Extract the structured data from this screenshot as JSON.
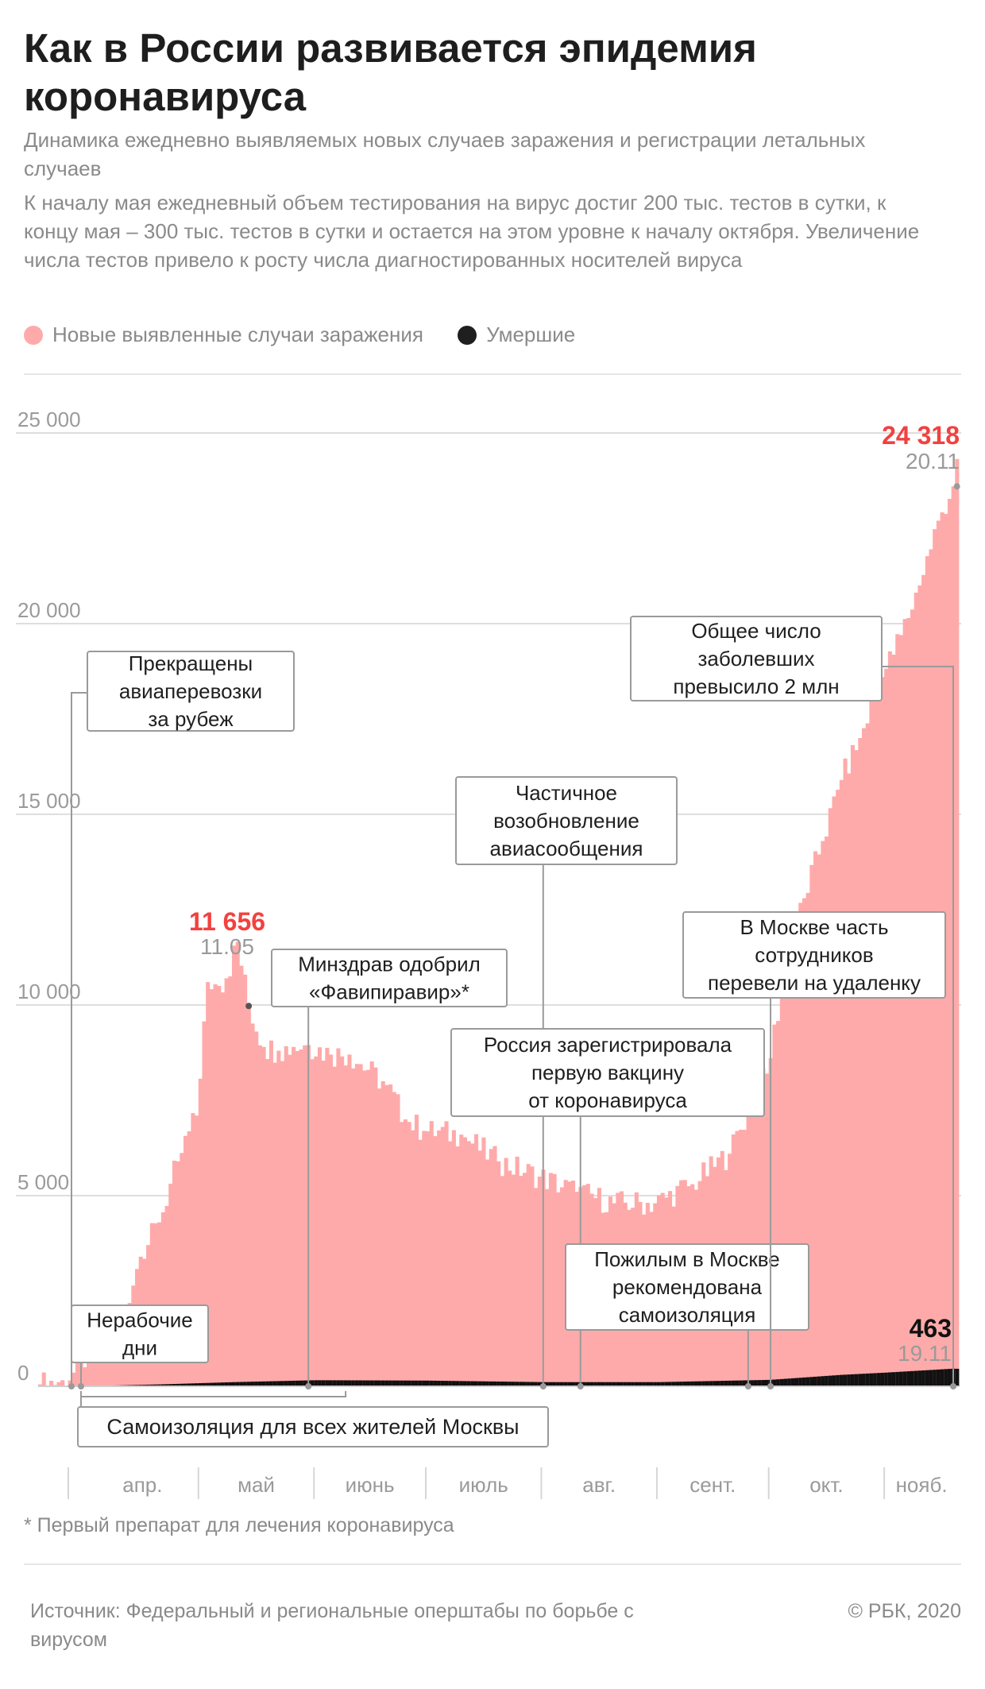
{
  "header": {
    "title": "Как в России развивается эпидемия коронавируса",
    "subtitle": "Динамика ежедневно выявляемых новых случаев заражения и регистрации летальных случаев",
    "description": "К началу мая ежедневный объем тестирования на вирус достиг 200 тыс. тестов в сутки, к концу мая – 300 тыс. тестов в сутки и остается на этом уровне к началу октября. Увеличение числа тестов привело к росту числа диагностированных носителей вируса"
  },
  "legend": {
    "cases_label": "Новые выявленные случаи заражения",
    "deaths_label": "Умершие"
  },
  "colors": {
    "cases": "#ffaaaa",
    "deaths": "#111111",
    "highlight": "#f2413f",
    "muted": "#9a9a9a"
  },
  "chart_data": {
    "type": "bar",
    "start_date": "2020-03-19",
    "end_date": "2020-11-20",
    "ylim": [
      0,
      25000
    ],
    "yticks": [
      "0",
      "5 000",
      "10 000",
      "15 000",
      "20 000",
      "25 000"
    ],
    "ytick_values": [
      0,
      5000,
      10000,
      15000,
      20000,
      25000
    ],
    "months": [
      "апр.",
      "май",
      "июнь",
      "июль",
      "авг.",
      "сент.",
      "окт.",
      "нояб."
    ],
    "series": [
      {
        "name": "Новые выявленные случаи заражения",
        "keyframes": [
          [
            "2020-03-19",
            50
          ],
          [
            "2020-03-25",
            160
          ],
          [
            "2020-03-31",
            500
          ],
          [
            "2020-04-05",
            950
          ],
          [
            "2020-04-10",
            1800
          ],
          [
            "2020-04-15",
            3400
          ],
          [
            "2020-04-20",
            4300
          ],
          [
            "2020-04-25",
            5900
          ],
          [
            "2020-04-30",
            7100
          ],
          [
            "2020-05-03",
            10600
          ],
          [
            "2020-05-06",
            10500
          ],
          [
            "2020-05-08",
            10700
          ],
          [
            "2020-05-11",
            11656
          ],
          [
            "2020-05-14",
            9974
          ],
          [
            "2020-05-18",
            8900
          ],
          [
            "2020-05-22",
            8800
          ],
          [
            "2020-05-26",
            8900
          ],
          [
            "2020-05-30",
            8950
          ],
          [
            "2020-06-05",
            8700
          ],
          [
            "2020-06-10",
            8700
          ],
          [
            "2020-06-15",
            8300
          ],
          [
            "2020-06-20",
            7900
          ],
          [
            "2020-06-25",
            7000
          ],
          [
            "2020-06-30",
            6700
          ],
          [
            "2020-07-10",
            6600
          ],
          [
            "2020-07-20",
            5900
          ],
          [
            "2020-07-31",
            5500
          ],
          [
            "2020-08-10",
            5100
          ],
          [
            "2020-08-20",
            4800
          ],
          [
            "2020-08-31",
            4800
          ],
          [
            "2020-09-10",
            5300
          ],
          [
            "2020-09-20",
            6100
          ],
          [
            "2020-09-25",
            7200
          ],
          [
            "2020-09-30",
            8200
          ],
          [
            "2020-10-05",
            10900
          ],
          [
            "2020-10-10",
            12800
          ],
          [
            "2020-10-15",
            14300
          ],
          [
            "2020-10-20",
            15900
          ],
          [
            "2020-10-25",
            17000
          ],
          [
            "2020-10-31",
            18600
          ],
          [
            "2020-11-05",
            19700
          ],
          [
            "2020-11-10",
            21000
          ],
          [
            "2020-11-15",
            22700
          ],
          [
            "2020-11-19",
            23600
          ],
          [
            "2020-11-20",
            24318
          ]
        ],
        "ragged": 350
      },
      {
        "name": "Умершие",
        "keyframes": [
          [
            "2020-03-19",
            0
          ],
          [
            "2020-04-01",
            5
          ],
          [
            "2020-04-20",
            50
          ],
          [
            "2020-05-10",
            110
          ],
          [
            "2020-06-01",
            160
          ],
          [
            "2020-07-01",
            150
          ],
          [
            "2020-08-01",
            110
          ],
          [
            "2020-09-01",
            110
          ],
          [
            "2020-10-01",
            170
          ],
          [
            "2020-10-20",
            300
          ],
          [
            "2020-11-01",
            360
          ],
          [
            "2020-11-19",
            463
          ],
          [
            "2020-11-20",
            460
          ]
        ]
      }
    ],
    "highlights": [
      {
        "date": "2020-05-11",
        "value": "11 656",
        "date_label": "11.05"
      },
      {
        "date": "2020-11-20",
        "value": "24 318",
        "date_label": "20.11"
      },
      {
        "date": "2020-11-19",
        "value": "463",
        "date_label": "19.11"
      }
    ],
    "annotations": [
      {
        "text": [
          "Прекращены",
          "авиаперевозки",
          "за рубеж"
        ],
        "date": "2020-03-27"
      },
      {
        "text": [
          "Нерабочие",
          "дни"
        ],
        "date": "2020-03-30"
      },
      {
        "text": [
          "Минздрав одобрил",
          "«Фавипиравир»*"
        ],
        "date": "2020-05-30"
      },
      {
        "text": [
          "Частичное",
          "возобновление",
          "авиасообщения"
        ],
        "date": "2020-08-01"
      },
      {
        "text": [
          "Россия зарегистрировала",
          "первую вакцину",
          "от коронавируса"
        ],
        "date": "2020-08-11"
      },
      {
        "text": [
          "Пожилым в Москве",
          "рекомендована",
          "самоизоляция"
        ],
        "date": "2020-09-25"
      },
      {
        "text": [
          "В Москве часть",
          "сотрудников",
          "перевели на удаленку"
        ],
        "date": "2020-10-01"
      },
      {
        "text": [
          "Общее число",
          "заболевших",
          "превысило 2 млн"
        ],
        "date": "2020-11-19"
      }
    ],
    "period": {
      "label": "Самоизоляция для всех жителей Москвы",
      "start": "2020-03-30",
      "end": "2020-06-09"
    }
  },
  "footnote": "* Первый препарат для лечения коронавируса",
  "footer": {
    "source": "Источник: Федеральный и региональные оперштабы по борьбе с вирусом",
    "copyright": "© РБК, 2020"
  }
}
